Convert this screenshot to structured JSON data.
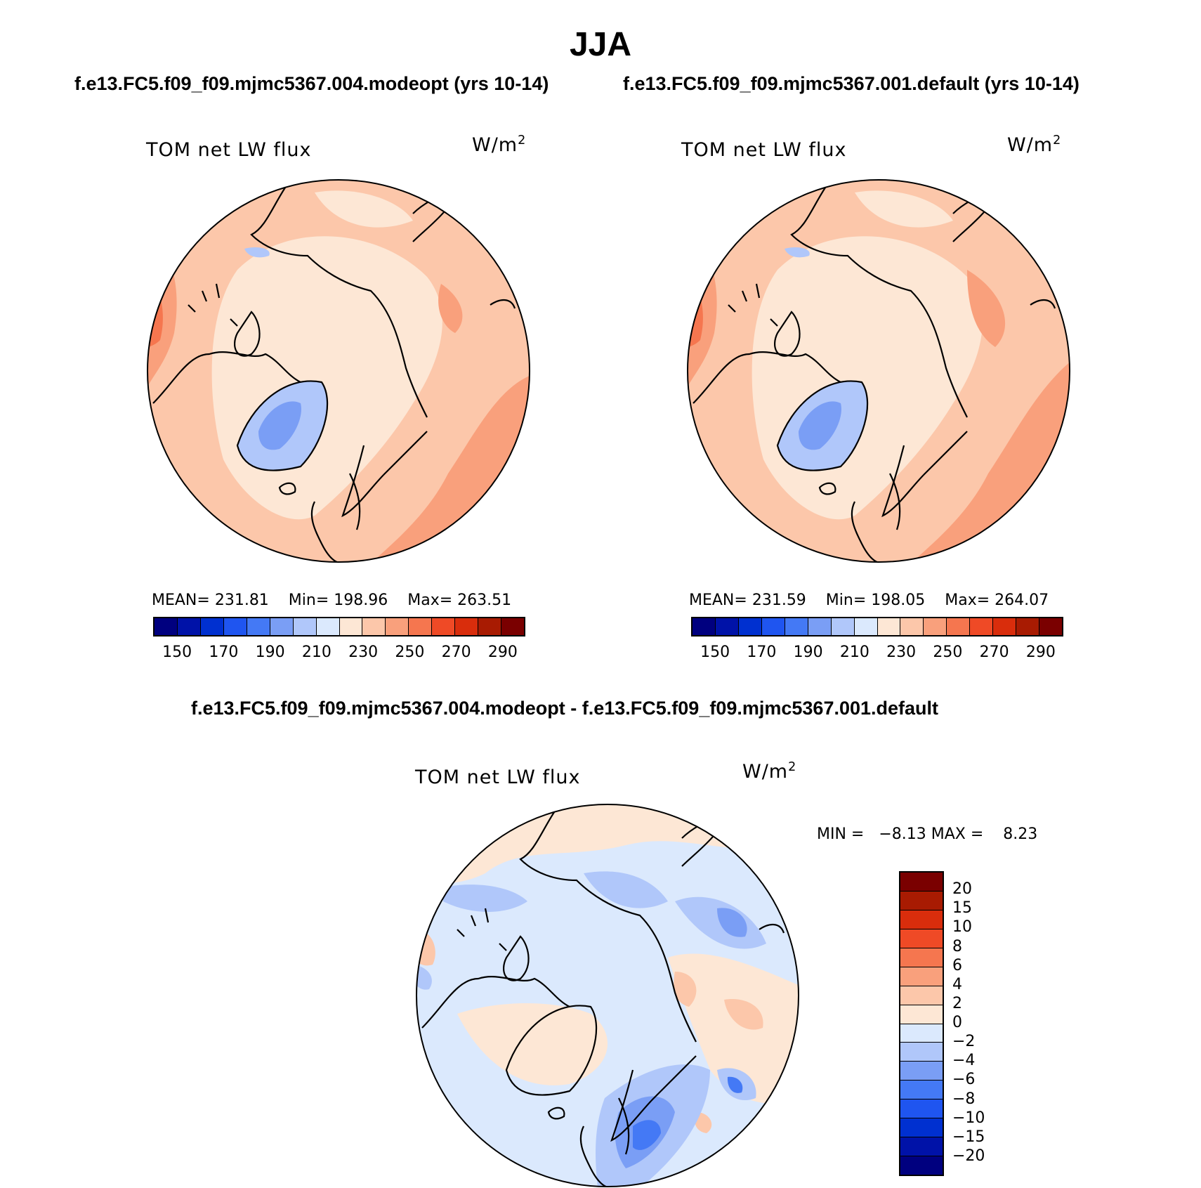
{
  "title": "JJA",
  "panels": [
    {
      "subtitle": "f.e13.FC5.f09_f09.mjmc5367.004.modeopt (yrs 10-14)",
      "left_label": "TOM net LW flux",
      "units_base": "W/m",
      "units_exp": "2",
      "stats": {
        "mean_label": "MEAN=",
        "mean": "231.81",
        "min_label": "Min=",
        "min": "198.96",
        "max_label": "Max=",
        "max": "263.51"
      }
    },
    {
      "subtitle": "f.e13.FC5.f09_f09.mjmc5367.001.default (yrs 10-14)",
      "left_label": "TOM net LW flux",
      "units_base": "W/m",
      "units_exp": "2",
      "stats": {
        "mean_label": "MEAN=",
        "mean": "231.59",
        "min_label": "Min=",
        "min": "198.05",
        "max_label": "Max=",
        "max": "264.07"
      }
    }
  ],
  "diff_panel": {
    "subtitle": "f.e13.FC5.f09_f09.mjmc5367.004.modeopt - f.e13.FC5.f09_f09.mjmc5367.001.default",
    "left_label": "TOM net LW flux",
    "units_base": "W/m",
    "units_exp": "2",
    "minmax": {
      "min_label": "MIN =",
      "min": "−8.13",
      "max_label": "MAX =",
      "max": "8.23"
    }
  },
  "colorbar_abs": {
    "colors": [
      "#00007f",
      "#0012a8",
      "#0030d0",
      "#1f55f0",
      "#4479f5",
      "#7a9ef5",
      "#b0c7fa",
      "#dbe9fd",
      "#fde7d5",
      "#fcc7aa",
      "#f9a07c",
      "#f5764f",
      "#ef4a26",
      "#d92d0c",
      "#a81b02",
      "#7a0000"
    ],
    "labels": [
      "150",
      "170",
      "190",
      "210",
      "230",
      "250",
      "270",
      "290"
    ]
  },
  "colorbar_diff": {
    "colors": [
      "#7a0000",
      "#a81b02",
      "#d92d0c",
      "#ef4a26",
      "#f5764f",
      "#f9a07c",
      "#fcc7aa",
      "#fde7d5",
      "#dbe9fd",
      "#b0c7fa",
      "#7a9ef5",
      "#4479f5",
      "#1f55f0",
      "#0030d0",
      "#0012a8",
      "#00007f"
    ],
    "labels": [
      "20",
      "15",
      "10",
      "8",
      "6",
      "4",
      "2",
      "0",
      "−2",
      "−4",
      "−6",
      "−8",
      "−10",
      "−15",
      "−20"
    ]
  },
  "map_fill": {
    "abs_base": "#fcc7aa",
    "abs_light": "#fde7d5",
    "abs_warm": "#f9a07c",
    "abs_hot": "#f5764f",
    "abs_cold": "#7a9ef5",
    "abs_cold_light": "#b0c7fa",
    "diff_base": "#dbe9fd",
    "diff_pos": "#fde7d5",
    "diff_pos2": "#fcc7aa",
    "diff_neg": "#b0c7fa",
    "diff_neg2": "#7a9ef5",
    "diff_neg3": "#4479f5"
  }
}
